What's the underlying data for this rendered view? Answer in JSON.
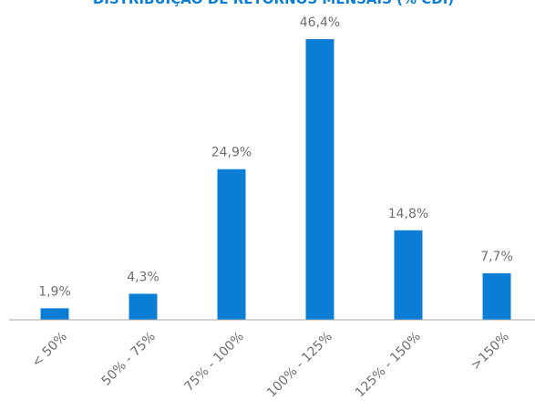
{
  "chart_data": {
    "type": "bar",
    "title": "DISTRIBUIÇÃO DE RETORNOS MENSAIS (% CDI)",
    "categories": [
      "< 50%",
      "50% - 75%",
      "75% - 100%",
      "100% - 125%",
      "125% - 150%",
      ">150%"
    ],
    "values": [
      1.9,
      4.3,
      24.9,
      46.4,
      14.8,
      7.7
    ],
    "value_labels": [
      "1,9%",
      "4,3%",
      "24,9%",
      "46,4%",
      "14,8%",
      "7,7%"
    ],
    "color": "#0b7dd4"
  }
}
